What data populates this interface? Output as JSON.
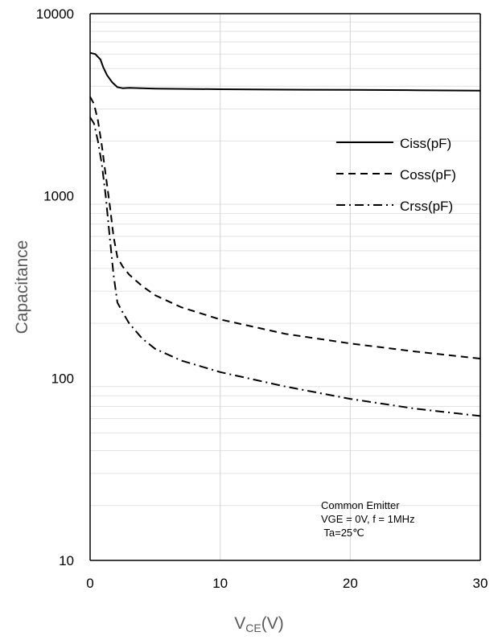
{
  "chart_data": {
    "type": "line",
    "title": "",
    "xlabel": "V",
    "xlabel_sub": "CE",
    "xlabel_unit": "(V)",
    "ylabel": "Capacitance",
    "xlim": [
      0,
      30
    ],
    "ylim": [
      10,
      10000
    ],
    "yscale": "log",
    "x_ticks": [
      "0",
      "10",
      "20",
      "30"
    ],
    "y_ticks": [
      "10",
      "100",
      "1000",
      "10000"
    ],
    "grid": "vertical major lines and horizontal log minor lines",
    "legend_position": "top-right",
    "series": [
      {
        "name": "Ciss(pF)",
        "style": "solid",
        "x": [
          0,
          0.4,
          0.8,
          1.0,
          1.3,
          1.7,
          2.1,
          2.5,
          3.0,
          5,
          10,
          15,
          20,
          25,
          30
        ],
        "y": [
          6100,
          6000,
          5600,
          5100,
          4600,
          4200,
          3950,
          3900,
          3920,
          3880,
          3850,
          3830,
          3820,
          3800,
          3780
        ]
      },
      {
        "name": "Coss(pF)",
        "style": "dashed",
        "x": [
          0,
          0.3,
          0.6,
          0.9,
          1.2,
          1.5,
          1.8,
          2.1,
          2.5,
          3,
          4,
          5,
          7,
          10,
          15,
          20,
          25,
          30
        ],
        "y": [
          3500,
          3200,
          2600,
          1900,
          1300,
          900,
          600,
          460,
          410,
          370,
          320,
          285,
          245,
          210,
          175,
          155,
          140,
          128
        ]
      },
      {
        "name": "Crss(pF)",
        "style": "dash-dot",
        "x": [
          0,
          0.3,
          0.6,
          0.9,
          1.2,
          1.5,
          1.8,
          2.1,
          2.5,
          3,
          4,
          5,
          7,
          10,
          15,
          20,
          25,
          30
        ],
        "y": [
          2700,
          2500,
          2000,
          1500,
          1000,
          600,
          370,
          260,
          230,
          200,
          165,
          145,
          125,
          108,
          90,
          77,
          68,
          62
        ]
      }
    ],
    "annotations": [
      "Common Emitter",
      "VGE = 0V, f = 1MHz",
      " Ta=25℃"
    ]
  }
}
